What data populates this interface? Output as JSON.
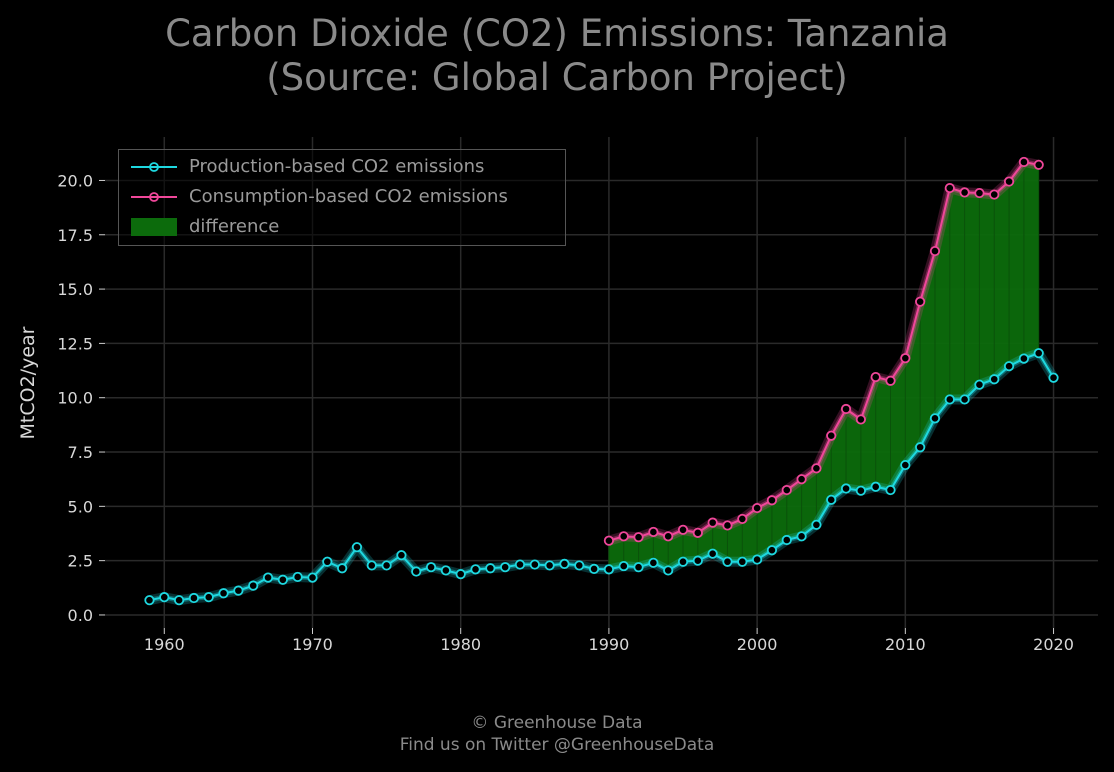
{
  "title_line1": "Carbon Dioxide (CO2) Emissions: Tanzania",
  "title_line2": "(Source: Global Carbon Project)",
  "footer_line1": "© Greenhouse Data",
  "footer_line2": "Find us on Twitter @GreenhouseData",
  "colors": {
    "background": "#000000",
    "production": "#1ed8e0",
    "consumption": "#f0479a",
    "difference": "#0c6b0c",
    "grid": "#2a2a2a",
    "text": "#d8d8d8",
    "title": "#8a8a8a"
  },
  "chart_data": {
    "type": "line",
    "ylabel": "MtCO2/year",
    "xlabel": "",
    "xlim": [
      1956,
      2023
    ],
    "ylim": [
      -0.6,
      22.0
    ],
    "x_ticks": [
      1960,
      1970,
      1980,
      1990,
      2000,
      2010,
      2020
    ],
    "y_ticks": [
      0.0,
      2.5,
      5.0,
      7.5,
      10.0,
      12.5,
      15.0,
      17.5,
      20.0
    ],
    "y_tick_labels": [
      "0.0",
      "2.5",
      "5.0",
      "7.5",
      "10.0",
      "12.5",
      "15.0",
      "17.5",
      "20.0"
    ],
    "grid": true,
    "legend_position": "top-left",
    "legend": [
      "Production-based CO2 emissions",
      "Consumption-based CO2 emissions",
      "difference"
    ],
    "series": [
      {
        "name": "Production-based CO2 emissions",
        "years": [
          1959,
          1960,
          1961,
          1962,
          1963,
          1964,
          1965,
          1966,
          1967,
          1968,
          1969,
          1970,
          1971,
          1972,
          1973,
          1974,
          1975,
          1976,
          1977,
          1978,
          1979,
          1980,
          1981,
          1982,
          1983,
          1984,
          1985,
          1986,
          1987,
          1988,
          1989,
          1990,
          1991,
          1992,
          1993,
          1994,
          1995,
          1996,
          1997,
          1998,
          1999,
          2000,
          2001,
          2002,
          2003,
          2004,
          2005,
          2006,
          2007,
          2008,
          2009,
          2010,
          2011,
          2012,
          2013,
          2014,
          2015,
          2016,
          2017,
          2018,
          2019,
          2020
        ],
        "values": [
          0.68,
          0.82,
          0.68,
          0.78,
          0.82,
          1.0,
          1.12,
          1.35,
          1.72,
          1.62,
          1.75,
          1.72,
          2.45,
          2.15,
          3.12,
          2.28,
          2.28,
          2.75,
          2.0,
          2.2,
          2.05,
          1.88,
          2.1,
          2.15,
          2.2,
          2.32,
          2.32,
          2.28,
          2.35,
          2.28,
          2.12,
          2.1,
          2.25,
          2.2,
          2.4,
          2.05,
          2.45,
          2.5,
          2.82,
          2.45,
          2.45,
          2.55,
          2.98,
          3.45,
          3.62,
          4.15,
          5.3,
          5.82,
          5.72,
          5.9,
          5.75,
          6.9,
          7.72,
          9.05,
          9.92,
          9.92,
          10.6,
          10.85,
          11.45,
          11.8,
          12.05,
          10.92
        ]
      },
      {
        "name": "Consumption-based CO2 emissions",
        "years": [
          1990,
          1991,
          1992,
          1993,
          1994,
          1995,
          1996,
          1997,
          1998,
          1999,
          2000,
          2001,
          2002,
          2003,
          2004,
          2005,
          2006,
          2007,
          2008,
          2009,
          2010,
          2011,
          2012,
          2013,
          2014,
          2015,
          2016,
          2017,
          2018,
          2019
        ],
        "values": [
          3.42,
          3.62,
          3.58,
          3.82,
          3.62,
          3.92,
          3.78,
          4.25,
          4.12,
          4.42,
          4.92,
          5.28,
          5.75,
          6.25,
          6.75,
          8.25,
          9.48,
          9.0,
          10.95,
          10.78,
          11.82,
          14.42,
          16.75,
          19.65,
          19.45,
          19.42,
          19.35,
          19.95,
          20.85,
          20.72
        ]
      }
    ]
  }
}
